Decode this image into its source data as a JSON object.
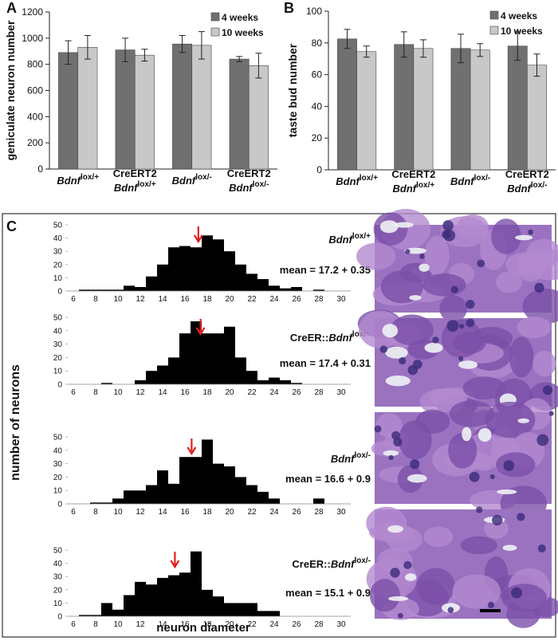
{
  "chart_data": [
    {
      "type": "bar",
      "panel": "A",
      "ylabel": "geniculate neuron number",
      "categories": [
        {
          "gene": "Bdnf",
          "sup": "lox/+"
        },
        {
          "prefix": "CreERT2",
          "gene": "Bdnf",
          "sup": "lox/+"
        },
        {
          "gene": "Bdnf",
          "sup": "lox/-"
        },
        {
          "prefix": "CreERT2",
          "gene": "Bdnf",
          "sup": "lox/-"
        }
      ],
      "series": [
        {
          "name": "4 weeks",
          "color": "#707070",
          "values": [
            890,
            910,
            955,
            840
          ],
          "errors": [
            90,
            90,
            65,
            20
          ]
        },
        {
          "name": "10 weeks",
          "color": "#c8c8c8",
          "values": [
            930,
            870,
            945,
            790
          ],
          "errors": [
            90,
            45,
            105,
            95
          ]
        }
      ],
      "ylim": [
        0,
        1200
      ],
      "yticks": [
        0,
        200,
        400,
        600,
        800,
        1000,
        1200
      ],
      "legend": "top-right"
    },
    {
      "type": "bar",
      "panel": "B",
      "ylabel": "taste bud number",
      "categories": [
        {
          "gene": "Bdnf",
          "sup": "lox/+"
        },
        {
          "prefix": "CreERT2",
          "gene": "Bdnf",
          "sup": "lox/+"
        },
        {
          "gene": "Bdnf",
          "sup": "lox/-"
        },
        {
          "prefix": "CreERT2",
          "gene": "Bdnf",
          "sup": "lox/-"
        }
      ],
      "series": [
        {
          "name": "4 weeks",
          "color": "#707070",
          "values": [
            82.5,
            79,
            76.5,
            78
          ],
          "errors": [
            6,
            8,
            9,
            9
          ]
        },
        {
          "name": "10 weeks",
          "color": "#c8c8c8",
          "values": [
            74.5,
            76.5,
            75.5,
            66
          ],
          "errors": [
            3.5,
            5.5,
            4,
            7
          ]
        }
      ],
      "ylim": [
        0,
        100
      ],
      "yticks": [
        0,
        20,
        40,
        60,
        80,
        100
      ],
      "legend": "top-right"
    },
    {
      "type": "histogram",
      "label": {
        "gene": "Bdnf",
        "sup": "lox/+"
      },
      "mean": 17.2,
      "mean_label": "mean = 17.2 + 0.35",
      "color": "#000000",
      "arrow_color": "#e02020",
      "bins": [
        5.5,
        6.5,
        7.5,
        8.5,
        9.5,
        10.5,
        11.5,
        12.5,
        13.5,
        14.5,
        15.5,
        16.5,
        17.5,
        18.5,
        19.5,
        20.5,
        21.5,
        22.5,
        23.5,
        24.5,
        25.5,
        26.5,
        27.5,
        28.5,
        29.5,
        30.5
      ],
      "counts": [
        0,
        1,
        1,
        1,
        1,
        4,
        3,
        11,
        20,
        33,
        34,
        33,
        42,
        39,
        30,
        20,
        13,
        9,
        4,
        2,
        3,
        0,
        1,
        0,
        0
      ],
      "xlim": [
        5.5,
        30.5
      ],
      "xticks": [
        6,
        8,
        10,
        12,
        14,
        16,
        18,
        20,
        22,
        24,
        26,
        28,
        30
      ],
      "ylim": [
        0,
        50
      ],
      "yticks": [
        0,
        10,
        20,
        30,
        40,
        50
      ]
    },
    {
      "type": "histogram",
      "label": {
        "prefix": "CreER::",
        "gene": "Bdnf",
        "sup": "lox/+"
      },
      "mean": 17.4,
      "mean_label": "mean = 17.4 + 0.31",
      "color": "#000000",
      "arrow_color": "#e02020",
      "bins": [
        5.5,
        6.5,
        7.5,
        8.5,
        9.5,
        10.5,
        11.5,
        12.5,
        13.5,
        14.5,
        15.5,
        16.5,
        17.5,
        18.5,
        19.5,
        20.5,
        21.5,
        22.5,
        23.5,
        24.5,
        25.5,
        26.5,
        27.5,
        28.5,
        29.5,
        30.5
      ],
      "counts": [
        0,
        0,
        0,
        1,
        0,
        0,
        3,
        10,
        14,
        20,
        38,
        47,
        38,
        38,
        43,
        20,
        10,
        3,
        5,
        3,
        1,
        0,
        0,
        0,
        0
      ],
      "xlim": [
        5.5,
        30.5
      ],
      "xticks": [
        6,
        8,
        10,
        12,
        14,
        16,
        18,
        20,
        22,
        24,
        26,
        28,
        30
      ],
      "ylim": [
        0,
        50
      ],
      "yticks": [
        0,
        10,
        20,
        30,
        40,
        50
      ]
    },
    {
      "type": "histogram",
      "label": {
        "gene": "Bdnf",
        "sup": "lox/-"
      },
      "mean": 16.6,
      "mean_label": "mean = 16.6 + 0.9",
      "color": "#000000",
      "arrow_color": "#e02020",
      "bins": [
        5.5,
        6.5,
        7.5,
        8.5,
        9.5,
        10.5,
        11.5,
        12.5,
        13.5,
        14.5,
        15.5,
        16.5,
        17.5,
        18.5,
        19.5,
        20.5,
        21.5,
        22.5,
        23.5,
        24.5,
        25.5,
        26.5,
        27.5,
        28.5,
        29.5,
        30.5
      ],
      "counts": [
        0,
        0,
        1,
        1,
        4,
        10,
        10,
        14,
        25,
        15,
        35,
        35,
        48,
        30,
        28,
        20,
        14,
        9,
        4,
        0,
        0,
        0,
        4,
        0,
        0
      ],
      "xlim": [
        5.5,
        30.5
      ],
      "xticks": [
        6,
        8,
        10,
        12,
        14,
        16,
        18,
        20,
        22,
        24,
        26,
        28,
        30
      ],
      "ylim": [
        0,
        50
      ],
      "yticks": [
        0,
        10,
        20,
        30,
        40,
        50
      ]
    },
    {
      "type": "histogram",
      "label": {
        "prefix": "CreER::",
        "gene": "Bdnf",
        "sup": "lox/-"
      },
      "mean": 15.1,
      "mean_label": "mean = 15.1 + 0.9",
      "color": "#000000",
      "arrow_color": "#e02020",
      "bins": [
        5.5,
        6.5,
        7.5,
        8.5,
        9.5,
        10.5,
        11.5,
        12.5,
        13.5,
        14.5,
        15.5,
        16.5,
        17.5,
        18.5,
        19.5,
        20.5,
        21.5,
        22.5,
        23.5,
        24.5,
        25.5,
        26.5,
        27.5,
        28.5,
        29.5,
        30.5
      ],
      "counts": [
        0,
        1,
        1,
        10,
        5,
        16,
        26,
        24,
        29,
        31,
        33,
        49,
        20,
        15,
        10,
        10,
        10,
        4,
        4,
        0,
        0,
        0,
        0,
        0,
        0
      ],
      "xlim": [
        5.5,
        30.5
      ],
      "xticks": [
        6,
        8,
        10,
        12,
        14,
        16,
        18,
        20,
        22,
        24,
        26,
        28,
        30
      ],
      "ylim": [
        0,
        50
      ],
      "yticks": [
        0,
        10,
        20,
        30,
        40,
        50
      ]
    }
  ],
  "panel_c": {
    "label": "C",
    "ylabel": "number of neurons",
    "xlabel": "neuron diameter"
  }
}
